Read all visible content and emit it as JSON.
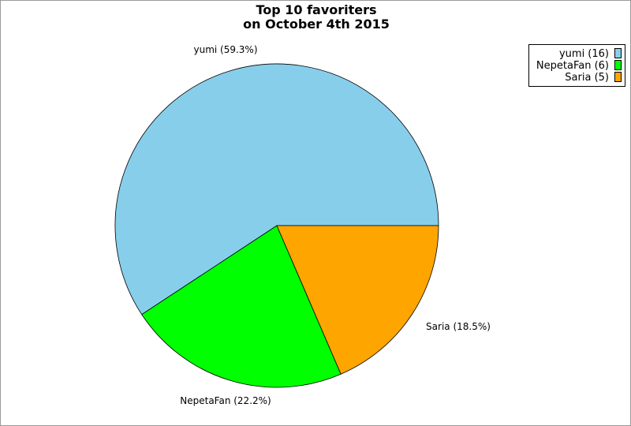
{
  "chart_data": {
    "type": "pie",
    "title_lines": [
      "Top 10 favoriters",
      "on October 4th 2015"
    ],
    "slices": [
      {
        "name": "yumi",
        "value": 16,
        "percent_label": "yumi (59.3%)",
        "legend_label": "yumi (16)",
        "color": "#87ceeb"
      },
      {
        "name": "NepetaFan",
        "value": 6,
        "percent_label": "NepetaFan (22.2%)",
        "legend_label": "NepetaFan (6)",
        "color": "#00ff00"
      },
      {
        "name": "Saria",
        "value": 5,
        "percent_label": "Saria (18.5%)",
        "legend_label": "Saria (5)",
        "color": "#ffa500"
      }
    ],
    "legend_position": "top-right",
    "start_angle_direction": "east, counterclockwise"
  }
}
